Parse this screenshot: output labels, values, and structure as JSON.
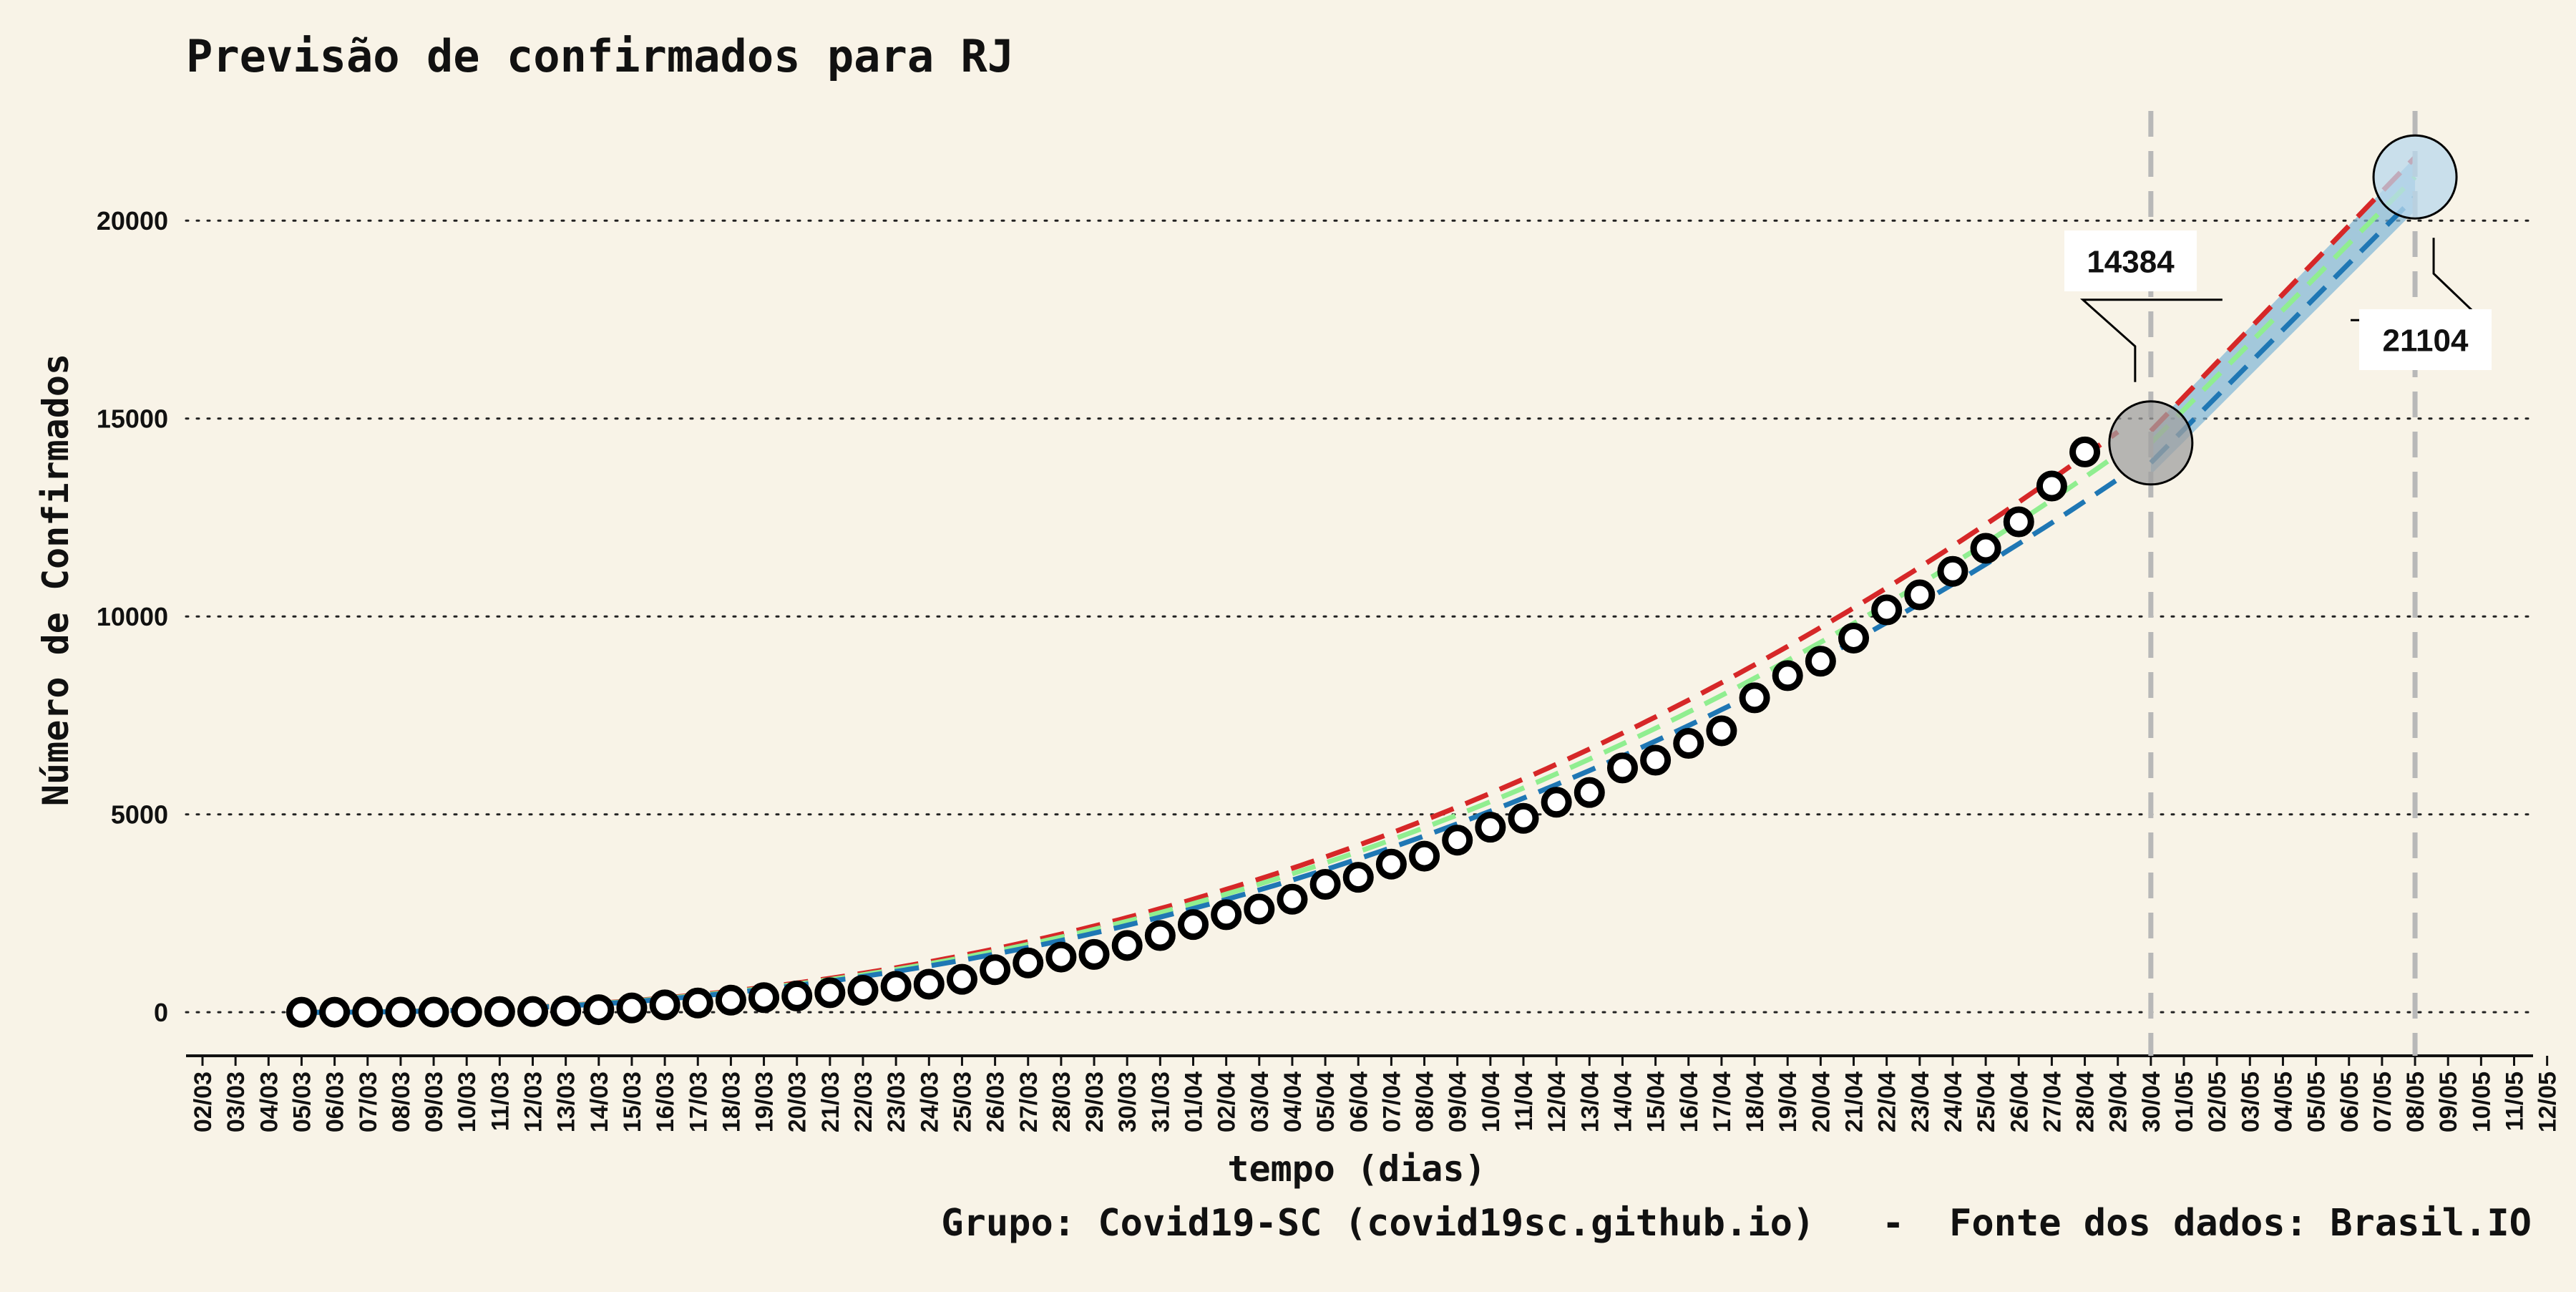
{
  "chart_data": {
    "type": "line",
    "title": "Previsão de confirmados para RJ",
    "xlabel": "tempo (dias)",
    "ylabel": "Número de Confirmados",
    "caption": "Grupo: Covid19-SC (covid19sc.github.io)   -  Fonte dos dados: Brasil.IO",
    "ylim": [
      -1100,
      22500
    ],
    "yticks": [
      0,
      5000,
      10000,
      15000,
      20000
    ],
    "grid": "horizontal-dotted",
    "categories": [
      "02/03",
      "03/03",
      "04/03",
      "05/03",
      "06/03",
      "07/03",
      "08/03",
      "09/03",
      "10/03",
      "11/03",
      "12/03",
      "13/03",
      "14/03",
      "15/03",
      "16/03",
      "17/03",
      "18/03",
      "19/03",
      "20/03",
      "21/03",
      "22/03",
      "23/03",
      "24/03",
      "25/03",
      "26/03",
      "27/03",
      "28/03",
      "29/03",
      "30/03",
      "31/03",
      "01/04",
      "02/04",
      "03/04",
      "04/04",
      "05/04",
      "06/04",
      "07/04",
      "08/04",
      "09/04",
      "10/04",
      "11/04",
      "12/04",
      "13/04",
      "14/04",
      "15/04",
      "16/04",
      "17/04",
      "18/04",
      "19/04",
      "20/04",
      "21/04",
      "22/04",
      "23/04",
      "24/04",
      "25/04",
      "26/04",
      "27/04",
      "28/04",
      "29/04",
      "30/04",
      "01/05",
      "02/05",
      "03/05",
      "04/05",
      "05/05",
      "06/05",
      "07/05",
      "08/05",
      "09/05",
      "10/05",
      "11/05",
      "12/05"
    ],
    "observed_start": "05/03",
    "observed": [
      1,
      2,
      2,
      3,
      3,
      8,
      16,
      19,
      33,
      65,
      109,
      186,
      233,
      305,
      370,
      412,
      493,
      555,
      657,
      708,
      832,
      1074,
      1246,
      1394,
      1461,
      1688,
      1938,
      2216,
      2464,
      2607,
      2855,
      3231,
      3410,
      3743,
      3944,
      4349,
      4675,
      4899,
      5306,
      5552,
      6172,
      6369,
      6794,
      7111,
      7944,
      8504,
      8869,
      9453,
      10166,
      10546,
      11139,
      11721,
      12391,
      13295,
      14156
    ],
    "fit_end": "29/04",
    "fit_scale": 14100,
    "fit_exponent": 2.3,
    "projection_start": "30/04",
    "projection_end": "08/05",
    "projection_upper_end": 21600,
    "projection_lower_end": 20600,
    "series": [
      {
        "color": "#d62728",
        "style": "dashed"
      },
      {
        "color": "#90ee90",
        "style": "dashed"
      },
      {
        "color": "#1f77b4",
        "style": "dashed"
      }
    ],
    "band_color": "#7fb5d5",
    "annotations": [
      {
        "date": "30/04",
        "value": 14384,
        "label": "14384",
        "marker_color": "#a0a0a0"
      },
      {
        "date": "08/05",
        "value": 21104,
        "label": "21104",
        "marker_color": "#b9d8ec"
      }
    ],
    "vlines": [
      "30/04",
      "08/05"
    ]
  }
}
